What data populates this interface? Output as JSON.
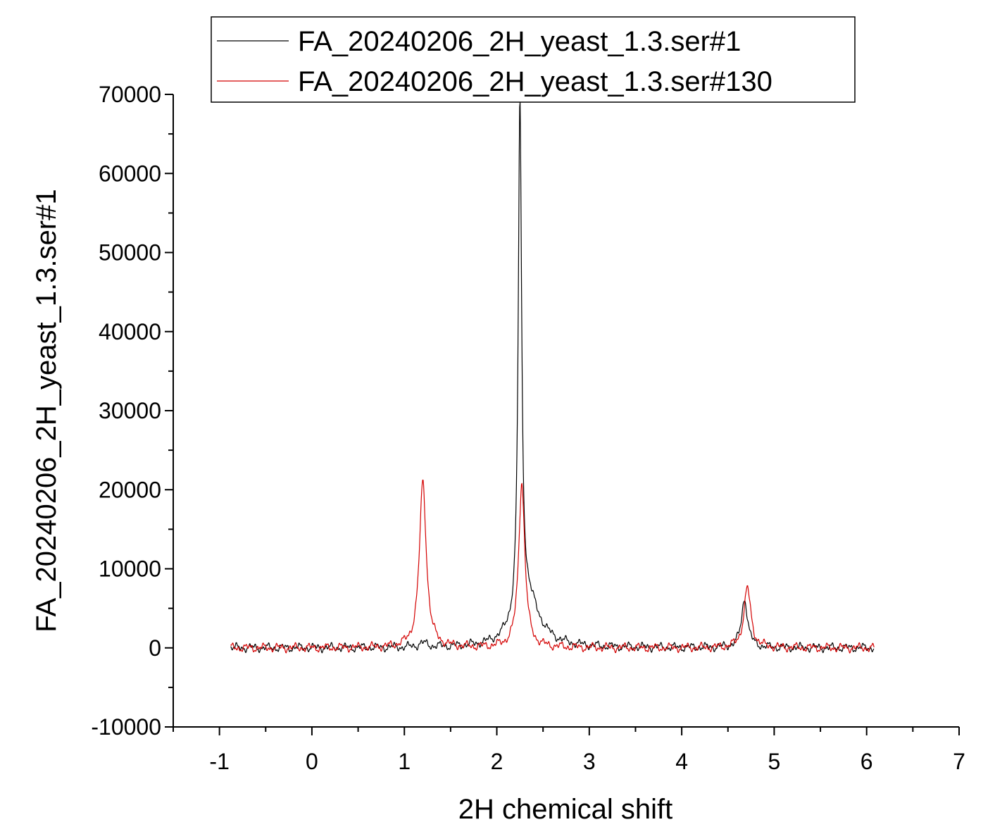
{
  "chart_data": {
    "type": "line",
    "title": "",
    "xlabel": "2H chemical shift",
    "ylabel": "FA_20240206_2H_yeast_1.3.ser#1",
    "xlim": [
      -1.5,
      7
    ],
    "ylim": [
      -10000,
      70000
    ],
    "x_ticks": [
      "-1",
      "0",
      "1",
      "2",
      "3",
      "4",
      "5",
      "6",
      "7"
    ],
    "y_ticks": [
      "-10000",
      "0",
      "10000",
      "20000",
      "30000",
      "40000",
      "50000",
      "60000",
      "70000"
    ],
    "grid": false,
    "legend_position": "top",
    "series": [
      {
        "name": "FA_20240206_2H_yeast_1.3.ser#1",
        "color": "#000000",
        "peaks": [
          {
            "center": 2.25,
            "height": 64500,
            "width": 0.022
          },
          {
            "center": 2.33,
            "height": 6000,
            "width": 0.16
          },
          {
            "center": 4.68,
            "height": 6200,
            "width": 0.04
          },
          {
            "center": 1.2,
            "height": 500,
            "width": 0.06
          }
        ],
        "x_range": [
          -0.88,
          6.08
        ]
      },
      {
        "name": "FA_20240206_2H_yeast_1.3.ser#130",
        "color": "#d40000",
        "peaks": [
          {
            "center": 1.2,
            "height": 21000,
            "width": 0.045
          },
          {
            "center": 2.27,
            "height": 21000,
            "width": 0.04
          },
          {
            "center": 4.71,
            "height": 7600,
            "width": 0.045
          }
        ],
        "x_range": [
          -0.88,
          6.08
        ]
      }
    ]
  }
}
